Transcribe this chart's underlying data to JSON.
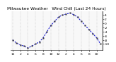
{
  "title": "Milwaukee Weather   Wind Chill (Last 24 Hours)",
  "x_values": [
    0,
    1,
    2,
    3,
    4,
    5,
    6,
    7,
    8,
    9,
    10,
    11,
    12,
    13,
    14,
    15,
    16,
    17,
    18,
    19,
    20,
    21,
    22,
    23
  ],
  "y_values": [
    -8,
    -9.5,
    -10.5,
    -11,
    -12,
    -11,
    -10,
    -9,
    -7,
    -4,
    -1,
    1,
    3,
    4,
    4.5,
    5,
    4.2,
    3,
    1,
    -1,
    -3,
    -5,
    -7,
    -10
  ],
  "y_lim": [
    -13,
    6
  ],
  "x_ticks": [
    0,
    2,
    4,
    6,
    8,
    10,
    12,
    14,
    16,
    18,
    20,
    22
  ],
  "x_tick_labels": [
    "12",
    "2",
    "4",
    "6",
    "8",
    "10",
    "12",
    "2",
    "4",
    "6",
    "8",
    "10"
  ],
  "y_ticks": [
    -10,
    -8,
    -6,
    -4,
    -2,
    0,
    2,
    4
  ],
  "y_tick_labels": [
    "-10",
    "-8",
    "-6",
    "-4",
    "-2",
    "0",
    "2",
    "4"
  ],
  "vgrid_positions": [
    0,
    2,
    4,
    6,
    8,
    10,
    12,
    14,
    16,
    18,
    20,
    22
  ],
  "line_color": "#0000cc",
  "marker_color": "#404040",
  "grid_color": "#bbbbbb",
  "bg_color": "#ffffff",
  "plot_bg": "#f8f8f8",
  "title_fontsize": 4.2,
  "tick_fontsize": 3.2
}
